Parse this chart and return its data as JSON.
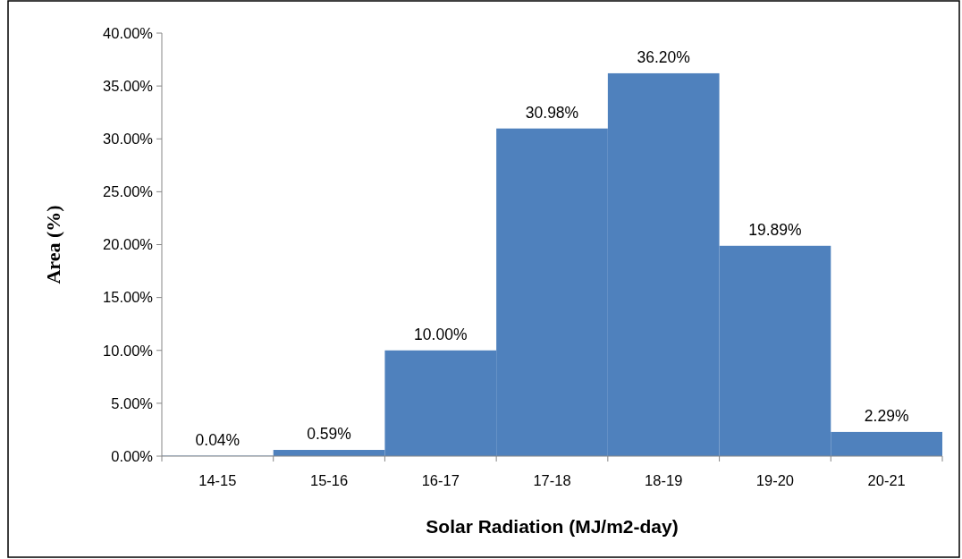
{
  "chart_data": {
    "type": "bar",
    "xlabel": "Solar Radiation (MJ/m2-day)",
    "ylabel": "Area (%)",
    "categories": [
      "14-15",
      "15-16",
      "16-17",
      "17-18",
      "18-19",
      "19-20",
      "20-21"
    ],
    "values": [
      0.04,
      0.59,
      10.0,
      30.98,
      36.2,
      19.89,
      2.29
    ],
    "value_labels": [
      "0.04%",
      "0.59%",
      "10.00%",
      "30.98%",
      "36.20%",
      "19.89%",
      "2.29%"
    ],
    "color": "#4f81bd",
    "ylim": [
      0,
      40
    ],
    "yticks": [
      {
        "value": 0,
        "label": "0.00%"
      },
      {
        "value": 5,
        "label": "5.00%"
      },
      {
        "value": 10,
        "label": "10.00%"
      },
      {
        "value": 15,
        "label": "15.00%"
      },
      {
        "value": 20,
        "label": "20.00%"
      },
      {
        "value": 25,
        "label": "25.00%"
      },
      {
        "value": 30,
        "label": "30.00%"
      },
      {
        "value": 35,
        "label": "35.00%"
      },
      {
        "value": 40,
        "label": "40.00%"
      }
    ],
    "grid": false
  }
}
